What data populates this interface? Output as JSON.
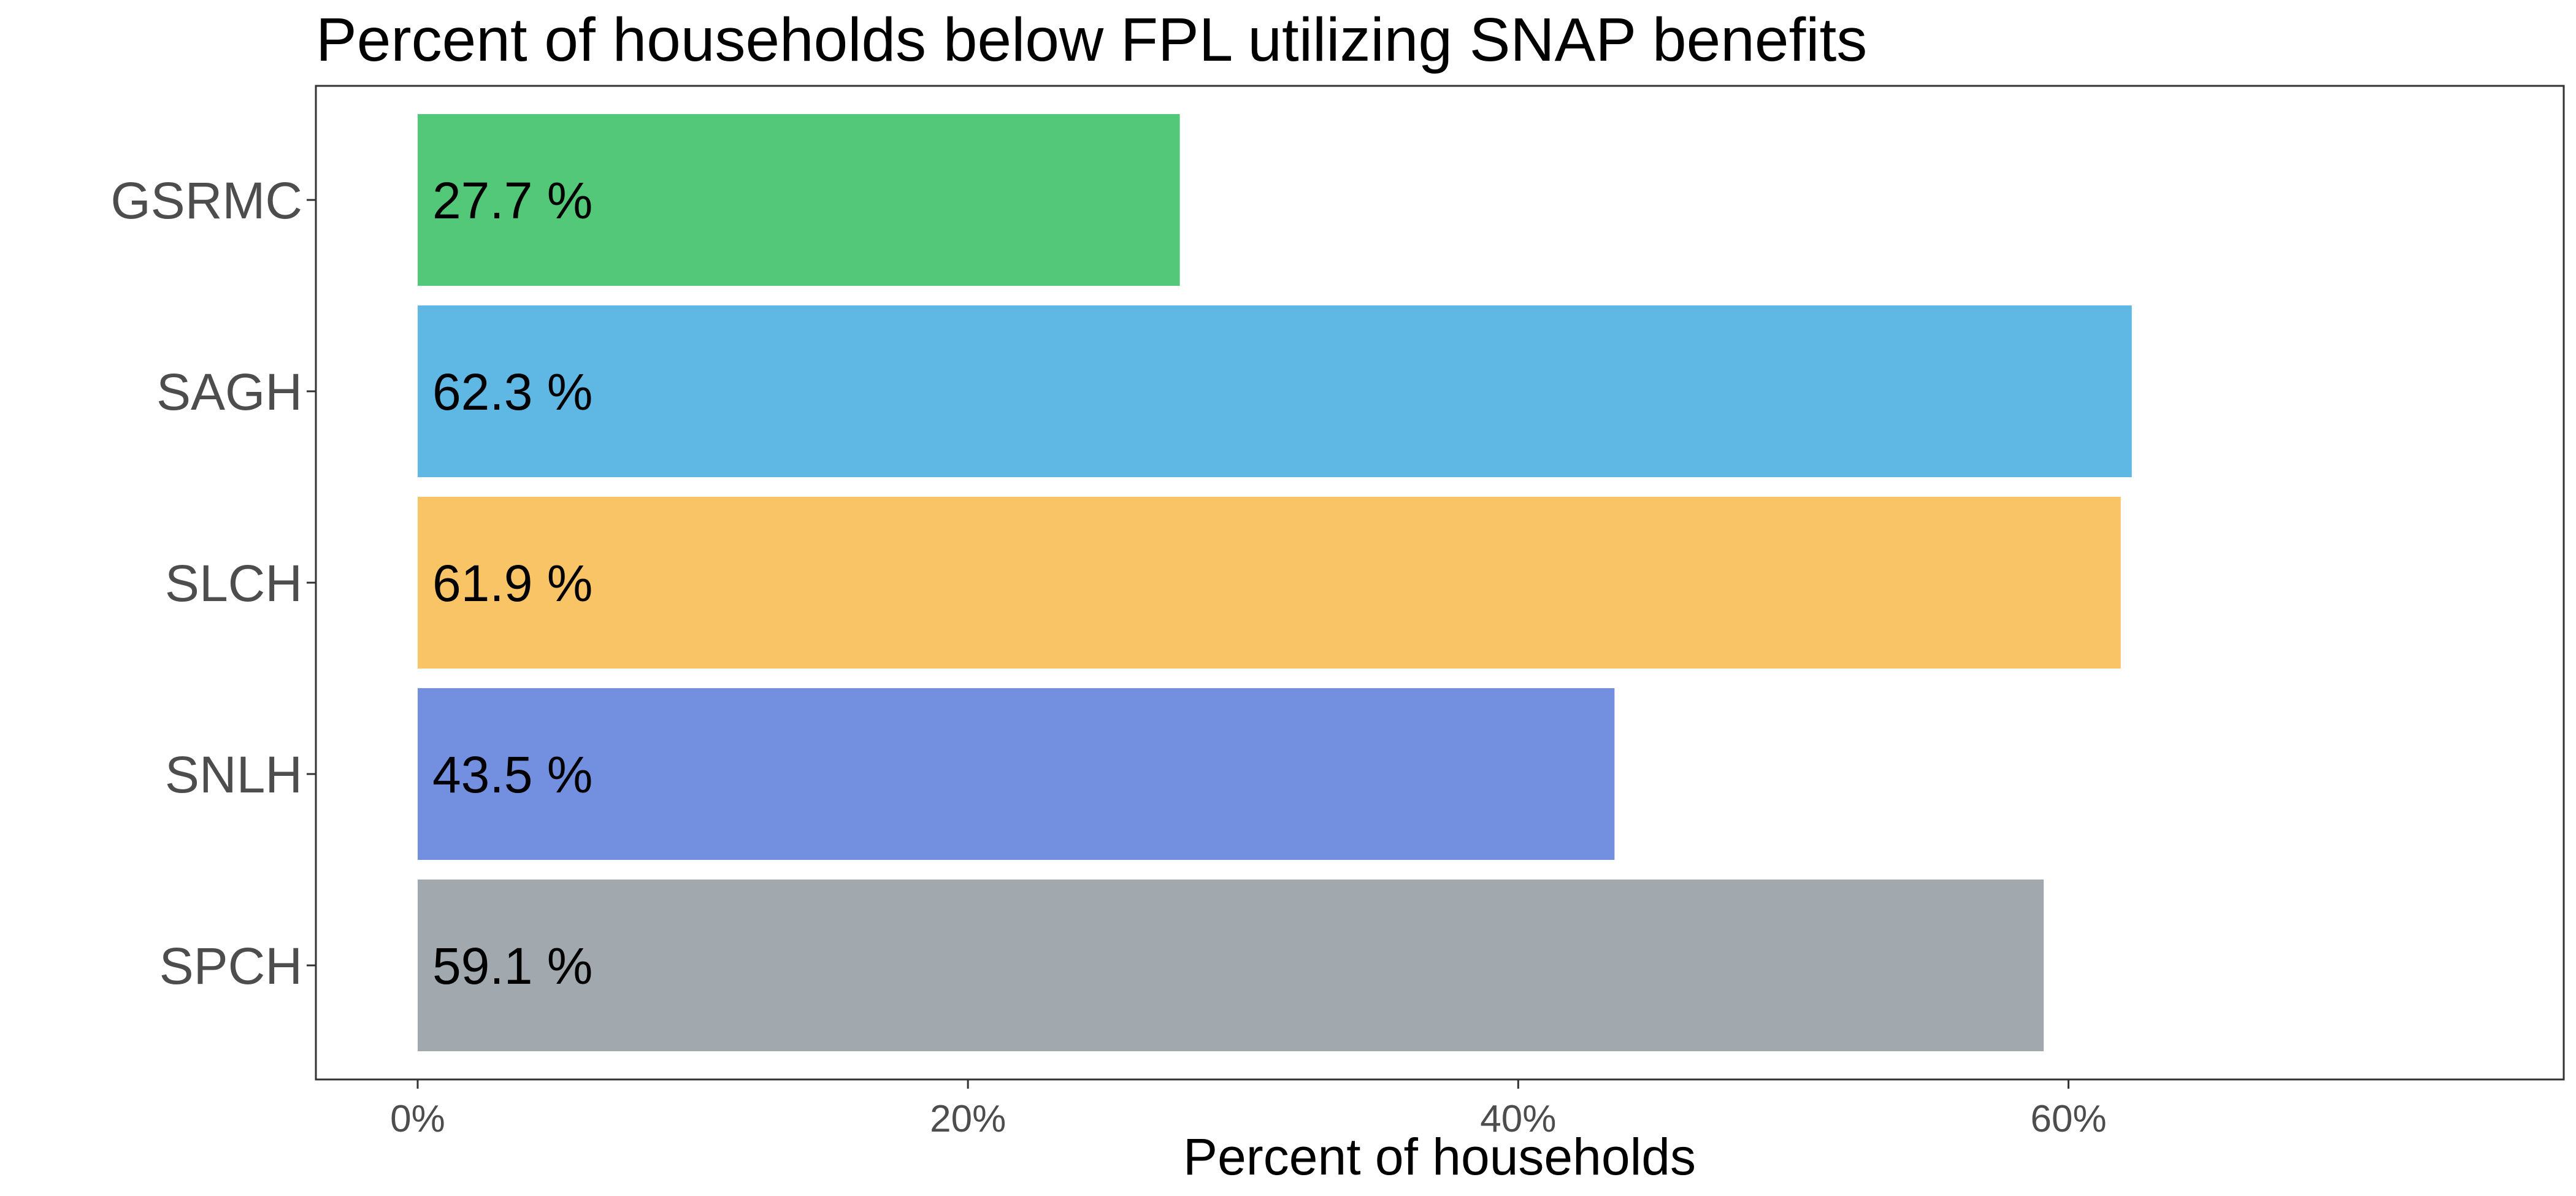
{
  "chart_data": {
    "type": "bar",
    "orientation": "horizontal",
    "title": "Percent of households below FPL utilizing SNAP benefits",
    "xlabel": "Percent of households",
    "ylabel": "",
    "categories": [
      "GSRMC",
      "SAGH",
      "SLCH",
      "SNLH",
      "SPCH"
    ],
    "values": [
      27.7,
      62.3,
      61.9,
      43.5,
      59.1
    ],
    "data_labels": [
      "27.7 %",
      "62.3 %",
      "61.9 %",
      "43.5 %",
      "59.1 %"
    ],
    "colors": [
      "#52c878",
      "#5fb8e4",
      "#f9c466",
      "#7390e0",
      "#a1a9ae"
    ],
    "xlim": [
      -3.7,
      78
    ],
    "x_ticks": [
      0,
      20,
      40,
      60
    ],
    "x_tick_labels": [
      "0%",
      "20%",
      "40%",
      "60%"
    ],
    "grid": false,
    "legend": "none"
  }
}
